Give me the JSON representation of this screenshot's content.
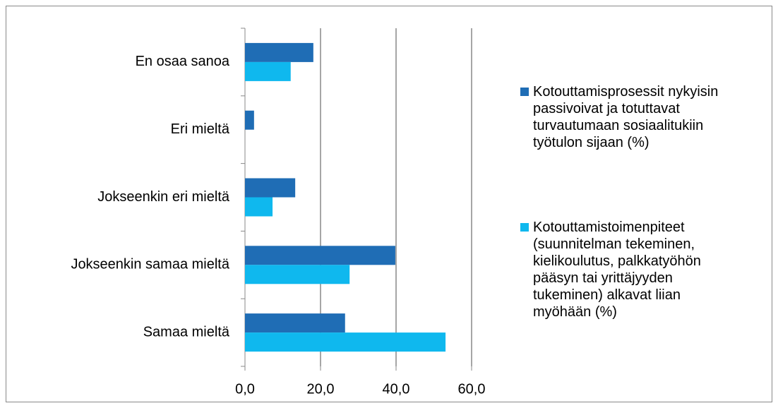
{
  "chart_data": {
    "type": "bar",
    "orientation": "horizontal",
    "categories": [
      "En osaa sanoa",
      "Eri mieltä",
      "Jokseenkin eri mieltä",
      "Jokseenkin samaa mieltä",
      "Samaa mieltä"
    ],
    "series": [
      {
        "name": "Kotouttamisprosessit nykyisin passivoivat ja totuttavat turvautumaan sosiaalitukiin työtulon sijaan (%)",
        "color": "#1f6db5",
        "values": [
          18.1,
          2.4,
          13.3,
          39.8,
          26.5
        ]
      },
      {
        "name": "Kotouttamistoimenpiteet (suunnitelman tekeminen, kielikoulutus, palkkatyöhön pääsyn tai yrittäjyyden tukeminen) alkavat liian myöhään (%)",
        "color": "#0fb8ee",
        "values": [
          12.1,
          0,
          7.3,
          27.7,
          53.1
        ]
      }
    ],
    "xlim": [
      0,
      60
    ],
    "xticks": [
      {
        "value": 0,
        "label": "0,0"
      },
      {
        "value": 20,
        "label": "20,0"
      },
      {
        "value": 40,
        "label": "40,0"
      },
      {
        "value": 60,
        "label": "60,0"
      }
    ],
    "grid": true,
    "legend": "right"
  }
}
